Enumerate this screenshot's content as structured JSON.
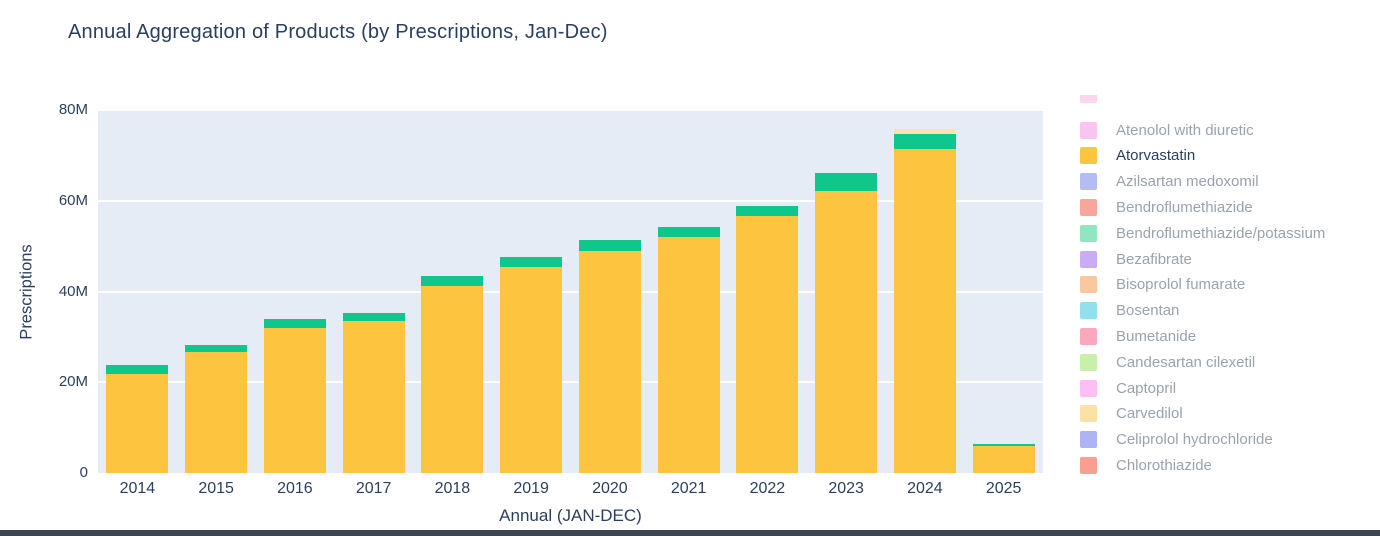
{
  "chart_data": {
    "type": "bar",
    "stacked": true,
    "title": "Annual Aggregation of Products (by Prescriptions, Jan-Dec)",
    "xlabel": "Annual (JAN-DEC)",
    "ylabel": "Prescriptions",
    "unit": "prescriptions",
    "ylim_millions": [
      0,
      80
    ],
    "yticks": [
      {
        "value_millions": 0,
        "label": "0"
      },
      {
        "value_millions": 20,
        "label": "20M"
      },
      {
        "value_millions": 40,
        "label": "40M"
      },
      {
        "value_millions": 60,
        "label": "60M"
      },
      {
        "value_millions": 80,
        "label": "80M"
      }
    ],
    "gridlines_at_millions": [
      20,
      40,
      60,
      80
    ],
    "grid": "on",
    "categories": [
      "2014",
      "2015",
      "2016",
      "2017",
      "2018",
      "2019",
      "2020",
      "2021",
      "2022",
      "2023",
      "2024",
      "2025"
    ],
    "series": [
      {
        "name": "Atorvastatin",
        "color": "#fdc53f",
        "values_millions": [
          21.9,
          26.7,
          32.0,
          33.6,
          41.3,
          45.5,
          49.0,
          52.1,
          56.7,
          62.2,
          71.3,
          5.9
        ]
      },
      {
        "name": "unlabeled_segment_green (legend entry below visible area)",
        "color": "#0fc68c",
        "values_millions": [
          1.9,
          1.5,
          1.9,
          1.7,
          2.2,
          2.0,
          2.4,
          2.1,
          2.2,
          4.0,
          3.5,
          0.5
        ]
      },
      {
        "name": "unlabeled_segment_pale_yellow (legend entry below visible area)",
        "color": "#fce4aa",
        "values_millions": [
          0,
          0,
          0,
          0,
          0,
          0,
          0,
          0,
          0,
          0,
          1.0,
          0
        ]
      }
    ],
    "totals_millions": [
      23.8,
      28.2,
      33.9,
      35.3,
      43.5,
      47.5,
      51.4,
      54.2,
      58.9,
      66.2,
      75.8,
      6.4
    ],
    "legend_position": "right"
  },
  "legend": {
    "partial_top_item": {
      "label": "",
      "color": "#fbd7ec",
      "partial": true,
      "active": false
    },
    "items": [
      {
        "label": "Atenolol with diuretic",
        "color": "#f8c5f1",
        "active": false
      },
      {
        "label": "Atorvastatin",
        "color": "#fdc43f",
        "active": true
      },
      {
        "label": "Azilsartan medoxomil",
        "color": "#b5bbf3",
        "active": false
      },
      {
        "label": "Bendroflumethiazide",
        "color": "#f8a59b",
        "active": false
      },
      {
        "label": "Bendroflumethiazide/potassium",
        "color": "#91e6c2",
        "active": false
      },
      {
        "label": "Bezafibrate",
        "color": "#caabf6",
        "active": false
      },
      {
        "label": "Bisoprolol fumarate",
        "color": "#fbc79e",
        "active": false
      },
      {
        "label": "Bosentan",
        "color": "#92e0ed",
        "active": false
      },
      {
        "label": "Bumetanide",
        "color": "#fba8be",
        "active": false
      },
      {
        "label": "Candesartan cilexetil",
        "color": "#c9f0ab",
        "active": false
      },
      {
        "label": "Captopril",
        "color": "#fbbff5",
        "active": false
      },
      {
        "label": "Carvedilol",
        "color": "#fde0a5",
        "active": false
      },
      {
        "label": "Celiprolol hydrochloride",
        "color": "#afb3f6",
        "active": false
      },
      {
        "label": "Chlorothiazide",
        "color": "#f99e91",
        "active": false
      }
    ]
  },
  "colors": {
    "plot_background": "#e5ecf6",
    "gridline": "#ffffff",
    "axis_text": "#2a3f5f",
    "legend_inactive_text": "#9aa2ad",
    "legend_active_text": "#2a3f5f",
    "bottom_bar": "#3d4452",
    "page_background": "#ffffff"
  }
}
